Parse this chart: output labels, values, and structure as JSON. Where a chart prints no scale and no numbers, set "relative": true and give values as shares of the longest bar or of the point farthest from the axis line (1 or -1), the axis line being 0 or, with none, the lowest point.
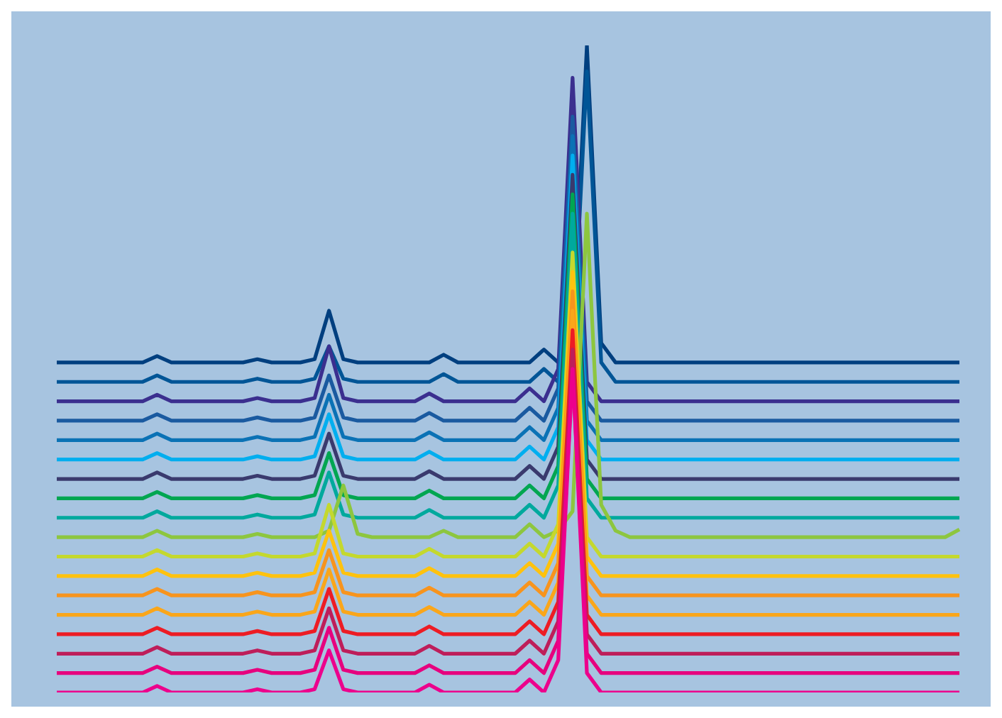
{
  "chart_data": {
    "type": "line",
    "relative": true,
    "categories": [
      null,
      null,
      null,
      null,
      null,
      null,
      null,
      null,
      null,
      null,
      null,
      null,
      null,
      null,
      null,
      null,
      null,
      null,
      null,
      null,
      null,
      null,
      null,
      null,
      null,
      null,
      null,
      null,
      null,
      null,
      null,
      null,
      null,
      null,
      null,
      null,
      null,
      null,
      null,
      null,
      null,
      null,
      null,
      null,
      null,
      null,
      null,
      null,
      null,
      null,
      null,
      null,
      null,
      null,
      null,
      null,
      null,
      null,
      null,
      null,
      null,
      null,
      null,
      null
    ],
    "series": [
      {
        "color": "#003f7f",
        "values": [
          0.51,
          0.51,
          0.51,
          0.51,
          0.51,
          0.51,
          0.51,
          0.52,
          0.51,
          0.51,
          0.51,
          0.51,
          0.51,
          0.51,
          0.515,
          0.51,
          0.51,
          0.51,
          0.515,
          0.59,
          0.515,
          0.51,
          0.51,
          0.51,
          0.51,
          0.51,
          0.51,
          0.522,
          0.51,
          0.51,
          0.51,
          0.51,
          0.51,
          0.51,
          0.53,
          0.51,
          0.55,
          1.0,
          0.54,
          0.51,
          0.51,
          0.51,
          0.51,
          0.51,
          0.51,
          0.51,
          0.51,
          0.51,
          0.51,
          0.51,
          0.51,
          0.51,
          0.51,
          0.51,
          0.51,
          0.51,
          0.51,
          0.51,
          0.51,
          0.51,
          0.51,
          0.51,
          0.51,
          0.51
        ]
      },
      {
        "color": "#005596",
        "values": [
          0.48,
          0.48,
          0.48,
          0.48,
          0.48,
          0.48,
          0.48,
          0.49,
          0.48,
          0.48,
          0.48,
          0.48,
          0.48,
          0.48,
          0.485,
          0.48,
          0.48,
          0.48,
          0.485,
          0.535,
          0.485,
          0.48,
          0.48,
          0.48,
          0.48,
          0.48,
          0.48,
          0.492,
          0.48,
          0.48,
          0.48,
          0.48,
          0.48,
          0.48,
          0.5,
          0.48,
          0.52,
          0.96,
          0.51,
          0.48,
          0.48,
          0.48,
          0.48,
          0.48,
          0.48,
          0.48,
          0.48,
          0.48,
          0.48,
          0.48,
          0.48,
          0.48,
          0.48,
          0.48,
          0.48,
          0.48,
          0.48,
          0.48,
          0.48,
          0.48,
          0.48,
          0.48,
          0.48,
          0.48
        ]
      },
      {
        "color": "#3b2f8f",
        "values": [
          0.45,
          0.45,
          0.45,
          0.45,
          0.45,
          0.45,
          0.45,
          0.46,
          0.45,
          0.45,
          0.45,
          0.45,
          0.45,
          0.45,
          0.455,
          0.45,
          0.45,
          0.45,
          0.455,
          0.535,
          0.455,
          0.45,
          0.45,
          0.45,
          0.45,
          0.45,
          0.462,
          0.45,
          0.45,
          0.45,
          0.45,
          0.45,
          0.45,
          0.47,
          0.45,
          0.5,
          0.95,
          0.48,
          0.45,
          0.45,
          0.45,
          0.45,
          0.45,
          0.45,
          0.45,
          0.45,
          0.45,
          0.45,
          0.45,
          0.45,
          0.45,
          0.45,
          0.45,
          0.45,
          0.45,
          0.45,
          0.45,
          0.45,
          0.45,
          0.45,
          0.45,
          0.45,
          0.45,
          0.45
        ]
      },
      {
        "color": "#1a5aa0",
        "values": [
          0.42,
          0.42,
          0.42,
          0.42,
          0.42,
          0.42,
          0.42,
          0.43,
          0.42,
          0.42,
          0.42,
          0.42,
          0.42,
          0.42,
          0.425,
          0.42,
          0.42,
          0.42,
          0.425,
          0.49,
          0.425,
          0.42,
          0.42,
          0.42,
          0.42,
          0.42,
          0.432,
          0.42,
          0.42,
          0.42,
          0.42,
          0.42,
          0.42,
          0.44,
          0.42,
          0.47,
          0.89,
          0.45,
          0.42,
          0.42,
          0.42,
          0.42,
          0.42,
          0.42,
          0.42,
          0.42,
          0.42,
          0.42,
          0.42,
          0.42,
          0.42,
          0.42,
          0.42,
          0.42,
          0.42,
          0.42,
          0.42,
          0.42,
          0.42,
          0.42,
          0.42,
          0.42,
          0.42,
          0.42
        ]
      },
      {
        "color": "#0b72b5",
        "values": [
          0.39,
          0.39,
          0.39,
          0.39,
          0.39,
          0.39,
          0.39,
          0.4,
          0.39,
          0.39,
          0.39,
          0.39,
          0.39,
          0.39,
          0.395,
          0.39,
          0.39,
          0.39,
          0.395,
          0.46,
          0.395,
          0.39,
          0.39,
          0.39,
          0.39,
          0.39,
          0.402,
          0.39,
          0.39,
          0.39,
          0.39,
          0.39,
          0.39,
          0.41,
          0.39,
          0.44,
          0.86,
          0.42,
          0.39,
          0.39,
          0.39,
          0.39,
          0.39,
          0.39,
          0.39,
          0.39,
          0.39,
          0.39,
          0.39,
          0.39,
          0.39,
          0.39,
          0.39,
          0.39,
          0.39,
          0.39,
          0.39,
          0.39,
          0.39,
          0.39,
          0.39,
          0.39,
          0.39,
          0.39
        ]
      },
      {
        "color": "#00aeef",
        "values": [
          0.36,
          0.36,
          0.36,
          0.36,
          0.36,
          0.36,
          0.36,
          0.37,
          0.36,
          0.36,
          0.36,
          0.36,
          0.36,
          0.36,
          0.365,
          0.36,
          0.36,
          0.36,
          0.365,
          0.43,
          0.365,
          0.36,
          0.36,
          0.36,
          0.36,
          0.36,
          0.372,
          0.36,
          0.36,
          0.36,
          0.36,
          0.36,
          0.36,
          0.38,
          0.36,
          0.41,
          0.83,
          0.39,
          0.36,
          0.36,
          0.36,
          0.36,
          0.36,
          0.36,
          0.36,
          0.36,
          0.36,
          0.36,
          0.36,
          0.36,
          0.36,
          0.36,
          0.36,
          0.36,
          0.36,
          0.36,
          0.36,
          0.36,
          0.36,
          0.36,
          0.36,
          0.36,
          0.36,
          0.36
        ]
      },
      {
        "color": "#3a3a6e",
        "values": [
          0.33,
          0.33,
          0.33,
          0.33,
          0.33,
          0.33,
          0.33,
          0.34,
          0.33,
          0.33,
          0.33,
          0.33,
          0.33,
          0.33,
          0.335,
          0.33,
          0.33,
          0.33,
          0.335,
          0.4,
          0.335,
          0.33,
          0.33,
          0.33,
          0.33,
          0.33,
          0.342,
          0.33,
          0.33,
          0.33,
          0.33,
          0.33,
          0.33,
          0.35,
          0.33,
          0.38,
          0.8,
          0.36,
          0.33,
          0.33,
          0.33,
          0.33,
          0.33,
          0.33,
          0.33,
          0.33,
          0.33,
          0.33,
          0.33,
          0.33,
          0.33,
          0.33,
          0.33,
          0.33,
          0.33,
          0.33,
          0.33,
          0.33,
          0.33,
          0.33,
          0.33,
          0.33,
          0.33,
          0.33
        ]
      },
      {
        "color": "#00a651",
        "values": [
          0.3,
          0.3,
          0.3,
          0.3,
          0.3,
          0.3,
          0.3,
          0.31,
          0.3,
          0.3,
          0.3,
          0.3,
          0.3,
          0.3,
          0.305,
          0.3,
          0.3,
          0.3,
          0.305,
          0.37,
          0.305,
          0.3,
          0.3,
          0.3,
          0.3,
          0.3,
          0.312,
          0.3,
          0.3,
          0.3,
          0.3,
          0.3,
          0.3,
          0.32,
          0.3,
          0.35,
          0.77,
          0.33,
          0.3,
          0.3,
          0.3,
          0.3,
          0.3,
          0.3,
          0.3,
          0.3,
          0.3,
          0.3,
          0.3,
          0.3,
          0.3,
          0.3,
          0.3,
          0.3,
          0.3,
          0.3,
          0.3,
          0.3,
          0.3,
          0.3,
          0.3,
          0.3,
          0.3,
          0.3
        ]
      },
      {
        "color": "#00a99d",
        "values": [
          0.27,
          0.27,
          0.27,
          0.27,
          0.27,
          0.27,
          0.27,
          0.28,
          0.27,
          0.27,
          0.27,
          0.27,
          0.27,
          0.27,
          0.275,
          0.27,
          0.27,
          0.27,
          0.275,
          0.34,
          0.275,
          0.27,
          0.27,
          0.27,
          0.27,
          0.27,
          0.282,
          0.27,
          0.27,
          0.27,
          0.27,
          0.27,
          0.27,
          0.29,
          0.27,
          0.32,
          0.74,
          0.3,
          0.27,
          0.27,
          0.27,
          0.27,
          0.27,
          0.27,
          0.27,
          0.27,
          0.27,
          0.27,
          0.27,
          0.27,
          0.27,
          0.27,
          0.27,
          0.27,
          0.27,
          0.27,
          0.27,
          0.27,
          0.27,
          0.27,
          0.27,
          0.27,
          0.27,
          0.27
        ]
      },
      {
        "color": "#8dc63f",
        "values": [
          0.24,
          0.24,
          0.24,
          0.24,
          0.24,
          0.24,
          0.24,
          0.25,
          0.24,
          0.24,
          0.24,
          0.24,
          0.24,
          0.24,
          0.245,
          0.24,
          0.24,
          0.24,
          0.24,
          0.25,
          0.32,
          0.245,
          0.24,
          0.24,
          0.24,
          0.24,
          0.24,
          0.25,
          0.24,
          0.24,
          0.24,
          0.24,
          0.24,
          0.26,
          0.24,
          0.25,
          0.28,
          0.74,
          0.29,
          0.25,
          0.24,
          0.24,
          0.24,
          0.24,
          0.24,
          0.24,
          0.24,
          0.24,
          0.24,
          0.24,
          0.24,
          0.24,
          0.24,
          0.24,
          0.24,
          0.24,
          0.24,
          0.24,
          0.24,
          0.24,
          0.24,
          0.24,
          0.24,
          0.252
        ]
      },
      {
        "color": "#c4d82e",
        "values": [
          0.21,
          0.21,
          0.21,
          0.21,
          0.21,
          0.21,
          0.21,
          0.22,
          0.21,
          0.21,
          0.21,
          0.21,
          0.21,
          0.21,
          0.215,
          0.21,
          0.21,
          0.21,
          0.215,
          0.29,
          0.215,
          0.21,
          0.21,
          0.21,
          0.21,
          0.21,
          0.222,
          0.21,
          0.21,
          0.21,
          0.21,
          0.21,
          0.21,
          0.23,
          0.21,
          0.26,
          0.68,
          0.24,
          0.21,
          0.21,
          0.21,
          0.21,
          0.21,
          0.21,
          0.21,
          0.21,
          0.21,
          0.21,
          0.21,
          0.21,
          0.21,
          0.21,
          0.21,
          0.21,
          0.21,
          0.21,
          0.21,
          0.21,
          0.21,
          0.21,
          0.21,
          0.21,
          0.21,
          0.21
        ]
      },
      {
        "color": "#ffc20e",
        "values": [
          0.18,
          0.18,
          0.18,
          0.18,
          0.18,
          0.18,
          0.18,
          0.19,
          0.18,
          0.18,
          0.18,
          0.18,
          0.18,
          0.18,
          0.185,
          0.18,
          0.18,
          0.18,
          0.185,
          0.25,
          0.185,
          0.18,
          0.18,
          0.18,
          0.18,
          0.18,
          0.192,
          0.18,
          0.18,
          0.18,
          0.18,
          0.18,
          0.18,
          0.2,
          0.18,
          0.23,
          0.65,
          0.21,
          0.18,
          0.18,
          0.18,
          0.18,
          0.18,
          0.18,
          0.18,
          0.18,
          0.18,
          0.18,
          0.18,
          0.18,
          0.18,
          0.18,
          0.18,
          0.18,
          0.18,
          0.18,
          0.18,
          0.18,
          0.18,
          0.18,
          0.18,
          0.18,
          0.18,
          0.18
        ]
      },
      {
        "color": "#f7941d",
        "values": [
          0.15,
          0.15,
          0.15,
          0.15,
          0.15,
          0.15,
          0.15,
          0.16,
          0.15,
          0.15,
          0.15,
          0.15,
          0.15,
          0.15,
          0.155,
          0.15,
          0.15,
          0.15,
          0.155,
          0.22,
          0.155,
          0.15,
          0.15,
          0.15,
          0.15,
          0.15,
          0.162,
          0.15,
          0.15,
          0.15,
          0.15,
          0.15,
          0.15,
          0.17,
          0.15,
          0.2,
          0.62,
          0.18,
          0.15,
          0.15,
          0.15,
          0.15,
          0.15,
          0.15,
          0.15,
          0.15,
          0.15,
          0.15,
          0.15,
          0.15,
          0.15,
          0.15,
          0.15,
          0.15,
          0.15,
          0.15,
          0.15,
          0.15,
          0.15,
          0.15,
          0.15,
          0.15,
          0.15,
          0.15
        ]
      },
      {
        "color": "#faa61a",
        "values": [
          0.12,
          0.12,
          0.12,
          0.12,
          0.12,
          0.12,
          0.12,
          0.13,
          0.12,
          0.12,
          0.12,
          0.12,
          0.12,
          0.12,
          0.125,
          0.12,
          0.12,
          0.12,
          0.125,
          0.19,
          0.125,
          0.12,
          0.12,
          0.12,
          0.12,
          0.12,
          0.132,
          0.12,
          0.12,
          0.12,
          0.12,
          0.12,
          0.12,
          0.14,
          0.12,
          0.17,
          0.59,
          0.15,
          0.12,
          0.12,
          0.12,
          0.12,
          0.12,
          0.12,
          0.12,
          0.12,
          0.12,
          0.12,
          0.12,
          0.12,
          0.12,
          0.12,
          0.12,
          0.12,
          0.12,
          0.12,
          0.12,
          0.12,
          0.12,
          0.12,
          0.12,
          0.12,
          0.12,
          0.12
        ]
      },
      {
        "color": "#ed1c24",
        "values": [
          0.09,
          0.09,
          0.09,
          0.09,
          0.09,
          0.09,
          0.09,
          0.1,
          0.09,
          0.09,
          0.09,
          0.09,
          0.09,
          0.09,
          0.095,
          0.09,
          0.09,
          0.09,
          0.095,
          0.16,
          0.095,
          0.09,
          0.09,
          0.09,
          0.09,
          0.09,
          0.102,
          0.09,
          0.09,
          0.09,
          0.09,
          0.09,
          0.09,
          0.11,
          0.09,
          0.14,
          0.56,
          0.12,
          0.09,
          0.09,
          0.09,
          0.09,
          0.09,
          0.09,
          0.09,
          0.09,
          0.09,
          0.09,
          0.09,
          0.09,
          0.09,
          0.09,
          0.09,
          0.09,
          0.09,
          0.09,
          0.09,
          0.09,
          0.09,
          0.09,
          0.09,
          0.09,
          0.09,
          0.09
        ]
      },
      {
        "color": "#be1e5a",
        "values": [
          0.06,
          0.06,
          0.06,
          0.06,
          0.06,
          0.06,
          0.06,
          0.07,
          0.06,
          0.06,
          0.06,
          0.06,
          0.06,
          0.06,
          0.065,
          0.06,
          0.06,
          0.06,
          0.065,
          0.13,
          0.065,
          0.06,
          0.06,
          0.06,
          0.06,
          0.06,
          0.072,
          0.06,
          0.06,
          0.06,
          0.06,
          0.06,
          0.06,
          0.08,
          0.06,
          0.11,
          0.53,
          0.09,
          0.06,
          0.06,
          0.06,
          0.06,
          0.06,
          0.06,
          0.06,
          0.06,
          0.06,
          0.06,
          0.06,
          0.06,
          0.06,
          0.06,
          0.06,
          0.06,
          0.06,
          0.06,
          0.06,
          0.06,
          0.06,
          0.06,
          0.06,
          0.06,
          0.06,
          0.06
        ]
      },
      {
        "color": "#e6007e",
        "values": [
          0.03,
          0.03,
          0.03,
          0.03,
          0.03,
          0.03,
          0.03,
          0.04,
          0.03,
          0.03,
          0.03,
          0.03,
          0.03,
          0.03,
          0.035,
          0.03,
          0.03,
          0.03,
          0.035,
          0.1,
          0.035,
          0.03,
          0.03,
          0.03,
          0.03,
          0.03,
          0.042,
          0.03,
          0.03,
          0.03,
          0.03,
          0.03,
          0.03,
          0.05,
          0.03,
          0.08,
          0.5,
          0.06,
          0.03,
          0.03,
          0.03,
          0.03,
          0.03,
          0.03,
          0.03,
          0.03,
          0.03,
          0.03,
          0.03,
          0.03,
          0.03,
          0.03,
          0.03,
          0.03,
          0.03,
          0.03,
          0.03,
          0.03,
          0.03,
          0.03,
          0.03,
          0.03,
          0.03,
          0.03
        ]
      },
      {
        "color": "#ec008c",
        "values": [
          0,
          0,
          0,
          0,
          0,
          0,
          0,
          0.01,
          0,
          0,
          0,
          0,
          0,
          0,
          0.005,
          0,
          0,
          0,
          0.005,
          0.065,
          0.005,
          0,
          0,
          0,
          0,
          0,
          0.012,
          0,
          0,
          0,
          0,
          0,
          0,
          0.02,
          0,
          0.05,
          0.5,
          0.03,
          0,
          0,
          0,
          0,
          0,
          0,
          0,
          0,
          0,
          0,
          0,
          0,
          0,
          0,
          0,
          0,
          0,
          0,
          0,
          0,
          0,
          0,
          0,
          0,
          0,
          0
        ]
      }
    ]
  }
}
